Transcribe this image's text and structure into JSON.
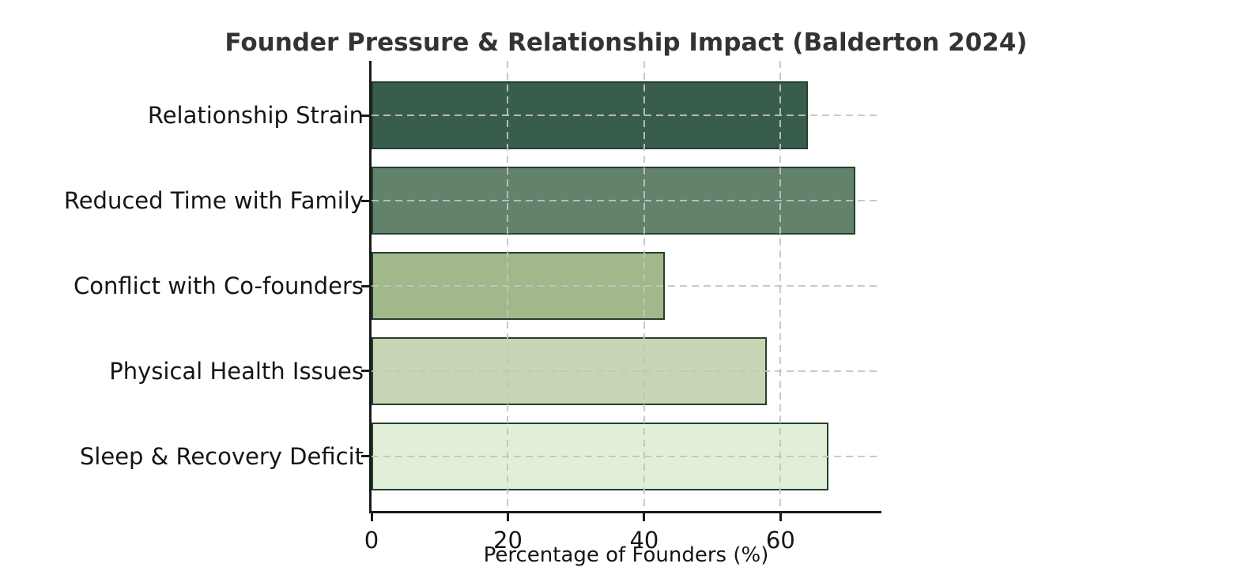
{
  "chart_data": {
    "type": "bar",
    "orientation": "horizontal",
    "title": "Founder Pressure & Relationship Impact (Balderton 2024)",
    "categories": [
      "Relationship Strain",
      "Reduced Time with Family",
      "Conflict with Co-founders",
      "Physical Health Issues",
      "Sleep & Recovery Deficit"
    ],
    "values": [
      64,
      71,
      43,
      58,
      67
    ],
    "xlabel": "Percentage of Founders (%)",
    "xticks": [
      0,
      20,
      40,
      60
    ],
    "xlim": [
      0,
      74.8
    ],
    "grid": "dashed",
    "legend": null,
    "colors": {
      "bar_fills": [
        "#395D4C",
        "#62826B",
        "#A2B88B",
        "#C7D5B4",
        "#E2EFD8"
      ],
      "bar_edge": "#24402F",
      "grid": "#C3C3C3",
      "spine": "#1A1A1A",
      "title_text": "#333333",
      "label_text": "#151515"
    }
  }
}
